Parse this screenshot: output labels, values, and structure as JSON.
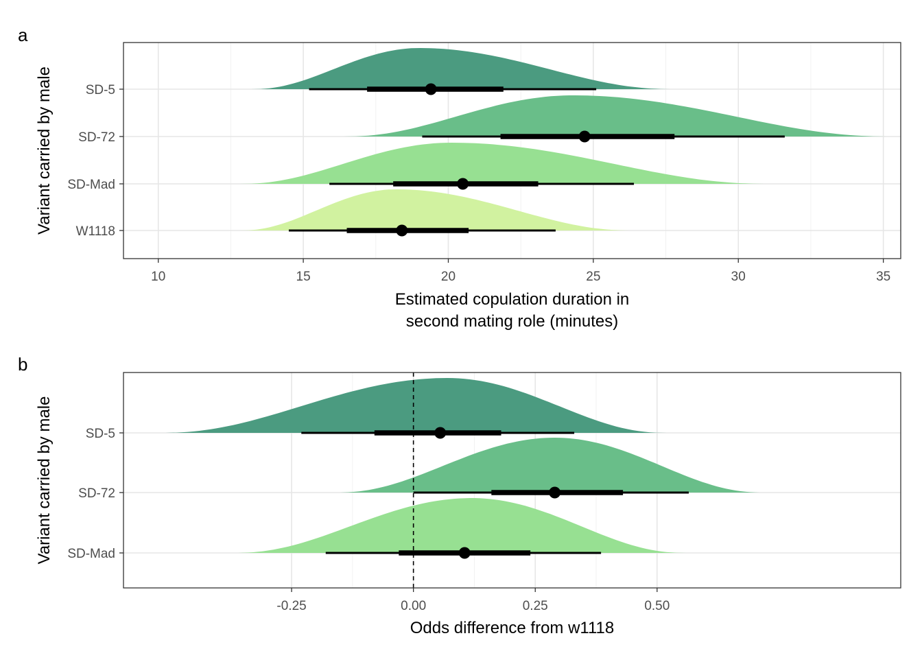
{
  "chart_data": [
    {
      "panel_label": "a",
      "type": "halfeye",
      "xlabel_line1": "Estimated copulation duration in",
      "xlabel_line2": "second mating role (minutes)",
      "ylabel": "Variant carried by male",
      "xlim": [
        8.8,
        35.6
      ],
      "xticks": [
        10,
        15,
        20,
        25,
        30,
        35
      ],
      "xtick_labels": [
        "10",
        "15",
        "20",
        "25",
        "30",
        "35"
      ],
      "grid": true,
      "reference_line": null,
      "series": [
        {
          "category": "SD-5",
          "color": "#4b9b80",
          "density_min": 13.2,
          "density_max": 27.8,
          "density_peak": 19.0,
          "point": 19.4,
          "interval_66": [
            17.2,
            21.9
          ],
          "interval_95": [
            15.2,
            25.1
          ]
        },
        {
          "category": "SD-72",
          "color": "#69be89",
          "density_min": 16.4,
          "density_max": 35.3,
          "density_peak": 24.3,
          "point": 24.7,
          "interval_66": [
            21.8,
            27.8
          ],
          "interval_95": [
            19.1,
            31.6
          ]
        },
        {
          "category": "SD-Mad",
          "color": "#97e092",
          "density_min": 12.8,
          "density_max": 31.1,
          "density_peak": 20.1,
          "point": 20.5,
          "interval_66": [
            18.1,
            23.1
          ],
          "interval_95": [
            15.9,
            26.4
          ]
        },
        {
          "category": "W1118",
          "color": "#d1f2a0",
          "density_min": 12.8,
          "density_max": 26.4,
          "density_peak": 18.2,
          "point": 18.4,
          "interval_66": [
            16.5,
            20.7
          ],
          "interval_95": [
            14.5,
            23.7
          ]
        }
      ]
    },
    {
      "panel_label": "b",
      "type": "halfeye",
      "xlabel_line1": "Odds difference from w1118",
      "xlabel_line2": "",
      "ylabel": "Variant carried by male",
      "xlim": [
        -0.595,
        1.0
      ],
      "xticks": [
        -0.25,
        0.0,
        0.25,
        0.5
      ],
      "xtick_labels": [
        "-0.25",
        "0.00",
        "0.25",
        "0.50"
      ],
      "grid": true,
      "reference_line": 0,
      "series": [
        {
          "category": "SD-5",
          "color": "#4b9b80",
          "density_min": -0.52,
          "density_max": 0.52,
          "density_peak": 0.07,
          "point": 0.055,
          "interval_66": [
            -0.08,
            0.18
          ],
          "interval_95": [
            -0.23,
            0.33
          ]
        },
        {
          "category": "SD-72",
          "color": "#69be89",
          "density_min": -0.16,
          "density_max": 0.72,
          "density_peak": 0.29,
          "point": 0.29,
          "interval_66": [
            0.16,
            0.43
          ],
          "interval_95": [
            0.0,
            0.565
          ]
        },
        {
          "category": "SD-Mad",
          "color": "#97e092",
          "density_min": -0.37,
          "density_max": 0.56,
          "density_peak": 0.12,
          "point": 0.105,
          "interval_66": [
            -0.03,
            0.24
          ],
          "interval_95": [
            -0.18,
            0.385
          ]
        }
      ]
    }
  ]
}
